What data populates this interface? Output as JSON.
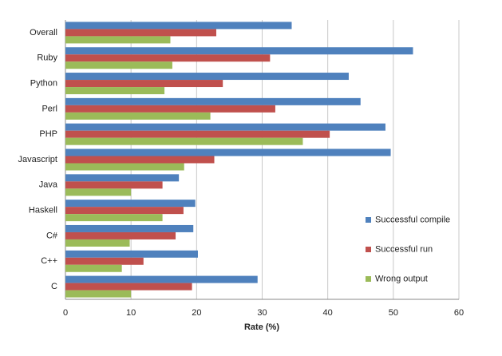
{
  "chart_data": {
    "type": "hbar",
    "xlabel": "Rate (%)",
    "categories": [
      "Overall",
      "Ruby",
      "Python",
      "Perl",
      "PHP",
      "Javascript",
      "Java",
      "Haskell",
      "C#",
      "C++",
      "C"
    ],
    "series": [
      {
        "name": "Successful compile",
        "color": "#4f81bd",
        "values": [
          34.5,
          53,
          43.2,
          45,
          48.8,
          49.6,
          17.3,
          19.8,
          19.5,
          20.2,
          29.3
        ]
      },
      {
        "name": "Successful run",
        "color": "#c0504d",
        "values": [
          23,
          31.2,
          24,
          32,
          40.3,
          22.7,
          14.8,
          18,
          16.8,
          11.9,
          19.3
        ]
      },
      {
        "name": "Wrong output",
        "color": "#9bbb59",
        "values": [
          16,
          16.3,
          15.1,
          22.1,
          36.2,
          18.1,
          10,
          14.8,
          9.8,
          8.6,
          10
        ]
      }
    ],
    "xlim": [
      0,
      60
    ],
    "xticks": [
      0,
      10,
      20,
      30,
      40,
      50,
      60
    ],
    "grid": true,
    "legend": "right"
  }
}
